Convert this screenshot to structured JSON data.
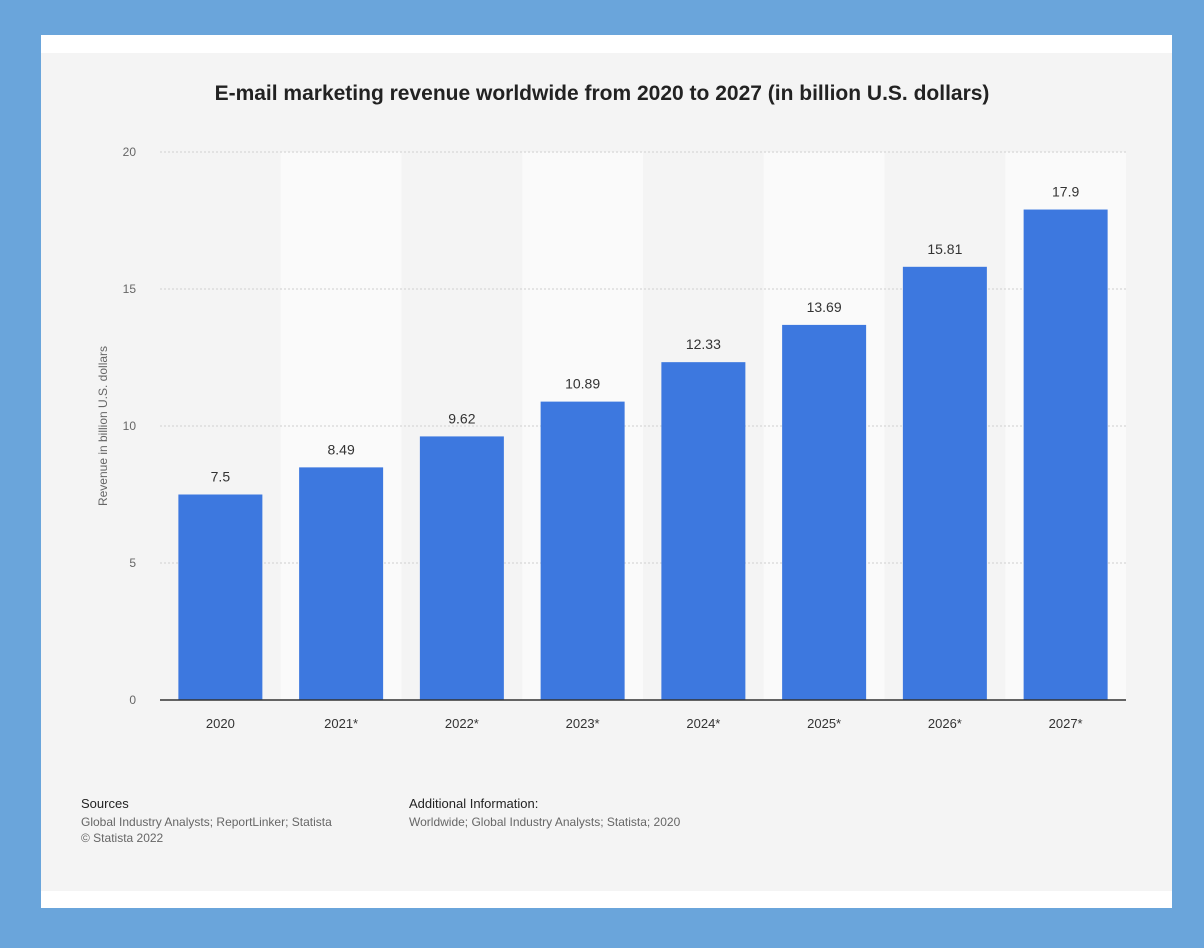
{
  "chart_data": {
    "type": "bar",
    "title": "E-mail marketing revenue worldwide from 2020 to 2027 (in billion U.S. dollars)",
    "xlabel": "",
    "ylabel": "Revenue in billion U.S. dollars",
    "categories": [
      "2020",
      "2021*",
      "2022*",
      "2023*",
      "2024*",
      "2025*",
      "2026*",
      "2027*"
    ],
    "values": [
      7.5,
      8.49,
      9.62,
      10.89,
      12.33,
      13.69,
      15.81,
      17.9
    ],
    "value_labels": [
      "7.5",
      "8.49",
      "9.62",
      "10.89",
      "12.33",
      "13.69",
      "15.81",
      "17.9"
    ],
    "ylim": [
      0,
      20
    ],
    "yticks": [
      "0",
      "5",
      "10",
      "15",
      "20"
    ],
    "ytick_values": [
      0,
      5,
      10,
      15,
      20
    ],
    "grid": true,
    "legend": "none",
    "bar_color": "#3d78df"
  },
  "footer": {
    "sources_heading": "Sources",
    "sources_line1": "Global Industry Analysts; ReportLinker; Statista",
    "sources_line2": "© Statista 2022",
    "additional_heading": "Additional Information:",
    "additional_line1": "Worldwide; Global Industry Analysts; Statista; 2020"
  }
}
